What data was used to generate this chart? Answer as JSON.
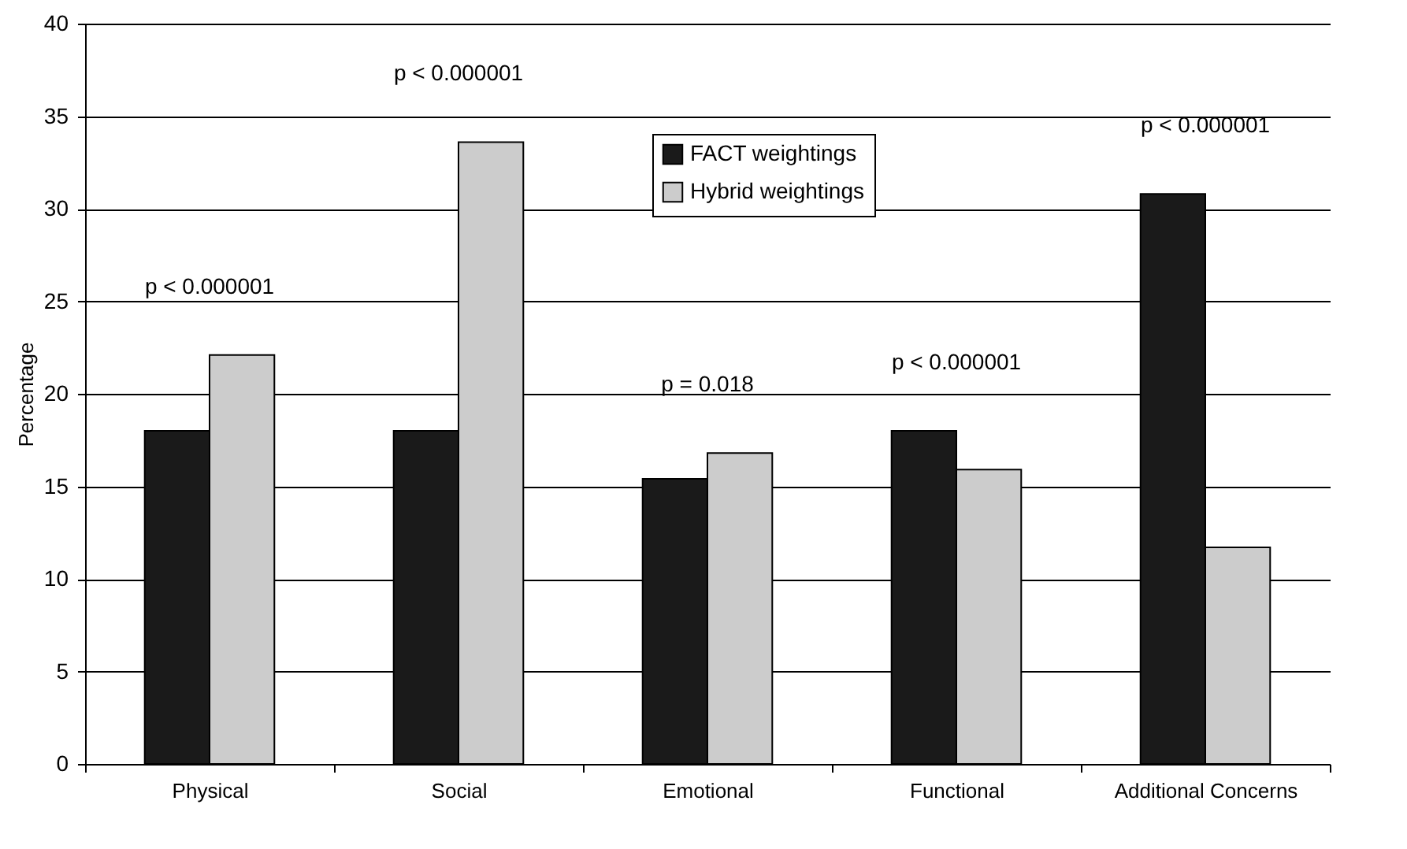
{
  "chart_data": {
    "type": "bar",
    "ylabel": "Percentage",
    "categories": [
      "Physical",
      "Social",
      "Emotional",
      "Functional",
      "Additional Concerns"
    ],
    "series": [
      {
        "name": "FACT weightings",
        "color": "#1a1a1a",
        "values": [
          18,
          18,
          15.4,
          18,
          30.8
        ]
      },
      {
        "name": "Hybrid weightings",
        "color": "#cccccc",
        "values": [
          22.1,
          33.6,
          16.8,
          15.9,
          11.7
        ]
      }
    ],
    "ylim": [
      0,
      40
    ],
    "yticks": [
      0,
      5,
      10,
      15,
      20,
      25,
      30,
      35,
      40
    ],
    "grid": "y",
    "legend": "top",
    "annotations": [
      "p < 0.000001",
      "p < 0.000001",
      "p = 0.018",
      "p < 0.000001",
      "p < 0.000001"
    ]
  }
}
